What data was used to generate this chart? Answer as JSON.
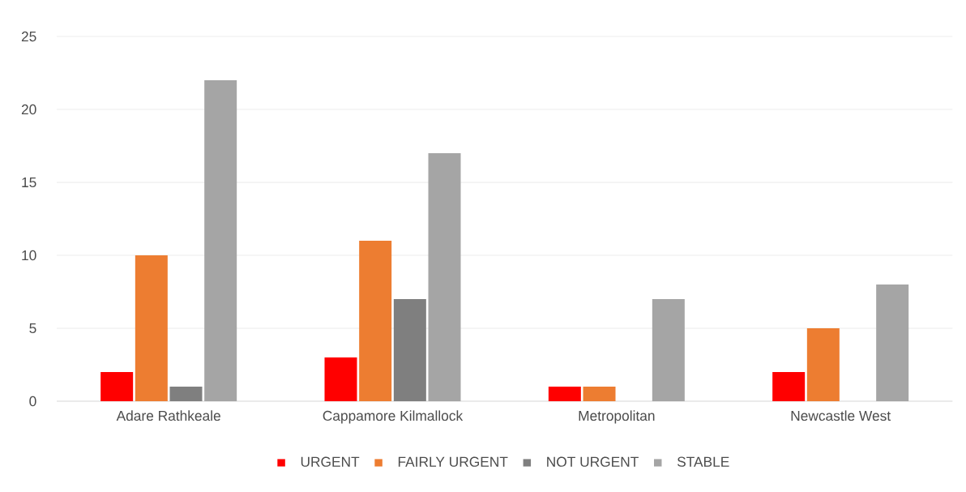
{
  "chart_data": {
    "type": "bar",
    "categories": [
      "Adare Rathkeale",
      "Cappamore Kilmallock",
      "Metropolitan",
      "Newcastle West"
    ],
    "series": [
      {
        "name": "URGENT",
        "color": "#ff0000",
        "values": [
          2,
          3,
          1,
          2
        ]
      },
      {
        "name": "FAIRLY URGENT",
        "color": "#ed7d31",
        "values": [
          10,
          11,
          1,
          5
        ]
      },
      {
        "name": "NOT URGENT",
        "color": "#7f7f7f",
        "values": [
          1,
          7,
          0,
          0
        ]
      },
      {
        "name": "STABLE",
        "color": "#a5a5a5",
        "values": [
          22,
          17,
          7,
          8
        ]
      }
    ],
    "ylim": [
      0,
      25
    ],
    "yticks": [
      0,
      5,
      10,
      15,
      20,
      25
    ],
    "grid": "y",
    "legend": "bottom"
  }
}
